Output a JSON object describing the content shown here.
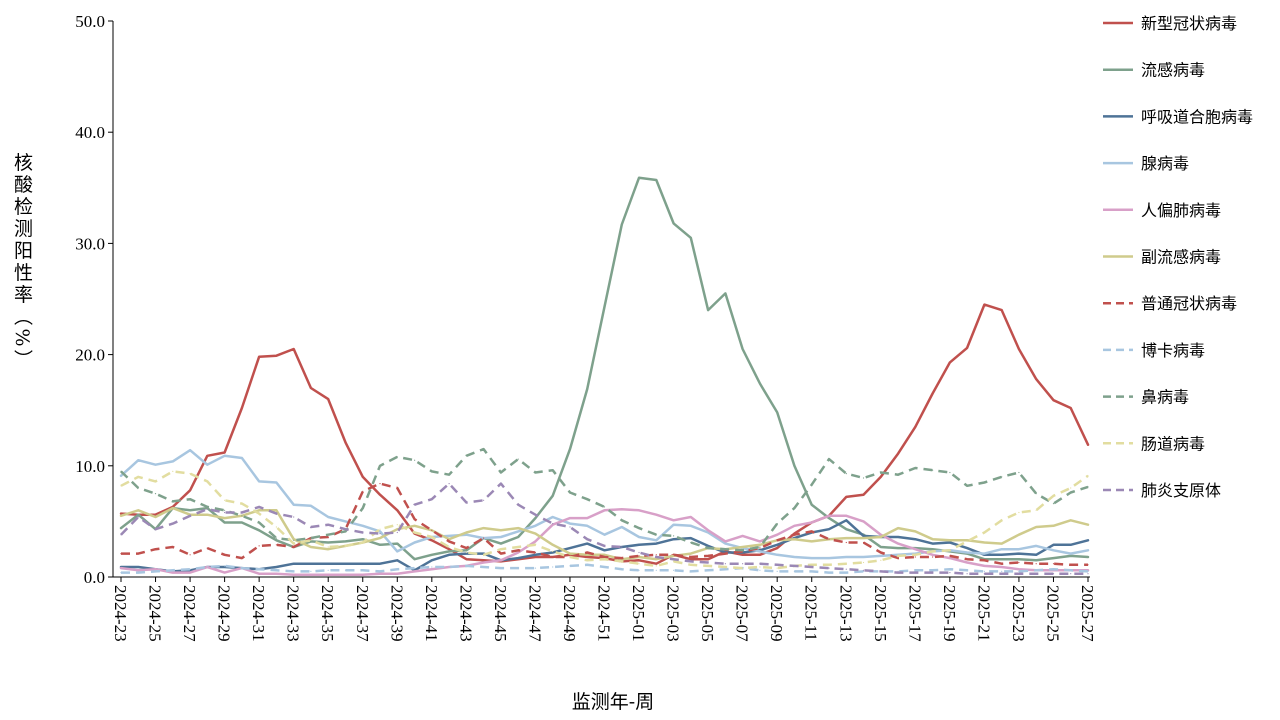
{
  "chart_data": {
    "type": "line",
    "xlabel": "监测年-周",
    "ylabel": "核酸检测阳性率（%）",
    "ylim": [
      0,
      50
    ],
    "yticks": [
      "0.0",
      "10.0",
      "20.0",
      "30.0",
      "40.0",
      "50.0"
    ],
    "grid": false,
    "legend_position": "right",
    "x": [
      "2024-23",
      "2024-24",
      "2024-25",
      "2024-26",
      "2024-27",
      "2024-28",
      "2024-29",
      "2024-30",
      "2024-31",
      "2024-32",
      "2024-33",
      "2024-34",
      "2024-35",
      "2024-36",
      "2024-37",
      "2024-38",
      "2024-39",
      "2024-40",
      "2024-41",
      "2024-42",
      "2024-43",
      "2024-44",
      "2024-45",
      "2024-46",
      "2024-47",
      "2024-48",
      "2024-49",
      "2024-50",
      "2024-51",
      "2024-52",
      "2025-01",
      "2025-02",
      "2025-03",
      "2025-04",
      "2025-05",
      "2025-06",
      "2025-07",
      "2025-08",
      "2025-09",
      "2025-10",
      "2025-11",
      "2025-12",
      "2025-13",
      "2025-14",
      "2025-15",
      "2025-16",
      "2025-17",
      "2025-18",
      "2025-19",
      "2025-20",
      "2025-21",
      "2025-22",
      "2025-23",
      "2025-24",
      "2025-25",
      "2025-26",
      "2025-27"
    ],
    "xticks": [
      "2024-23",
      "2024-25",
      "2024-27",
      "2024-29",
      "2024-31",
      "2024-33",
      "2024-35",
      "2024-37",
      "2024-39",
      "2024-41",
      "2024-43",
      "2024-45",
      "2024-47",
      "2024-49",
      "2024-51",
      "2025-01",
      "2025-03",
      "2025-05",
      "2025-07",
      "2025-09",
      "2025-11",
      "2025-13",
      "2025-15",
      "2025-17",
      "2025-19",
      "2025-21",
      "2025-23",
      "2025-25",
      "2025-27"
    ],
    "series": [
      {
        "name": "新型冠状病毒",
        "color": "#c0504d",
        "dash": false,
        "values": [
          5.7,
          5.6,
          5.6,
          6.3,
          7.8,
          10.9,
          11.2,
          15.2,
          19.8,
          19.9,
          20.5,
          17.0,
          16.0,
          12.1,
          9.0,
          7.4,
          6.0,
          3.9,
          3.3,
          2.5,
          1.6,
          1.5,
          1.4,
          1.6,
          1.8,
          1.8,
          2.0,
          1.8,
          1.7,
          1.4,
          1.5,
          1.2,
          2.0,
          1.6,
          1.6,
          2.3,
          2.0,
          2.0,
          2.6,
          3.9,
          4.9,
          5.5,
          7.2,
          7.4,
          9.0,
          11.1,
          13.5,
          16.5,
          19.3,
          20.6,
          24.5,
          24.0,
          20.5,
          17.8,
          15.9,
          15.2,
          11.9
        ]
      },
      {
        "name": "流感病毒",
        "color": "#7ea18c",
        "dash": false,
        "values": [
          4.4,
          5.6,
          4.3,
          6.2,
          6.0,
          6.2,
          4.9,
          4.9,
          4.2,
          3.3,
          2.7,
          3.2,
          3.1,
          3.2,
          3.4,
          2.9,
          3.0,
          1.6,
          2.0,
          2.3,
          2.4,
          3.5,
          3.0,
          3.6,
          5.3,
          7.3,
          11.5,
          16.9,
          24.3,
          31.7,
          35.9,
          35.7,
          31.8,
          30.5,
          24.0,
          25.5,
          20.5,
          17.4,
          14.8,
          10.0,
          6.5,
          5.3,
          4.3,
          3.8,
          2.7,
          2.6,
          2.6,
          2.5,
          2.3,
          2.1,
          1.6,
          1.6,
          1.6,
          1.5,
          1.7,
          1.9,
          1.8
        ]
      },
      {
        "name": "呼吸道合胞病毒",
        "color": "#4e7397",
        "dash": false,
        "values": [
          0.9,
          0.9,
          0.7,
          0.5,
          0.6,
          0.9,
          0.9,
          0.8,
          0.7,
          0.9,
          1.2,
          1.2,
          1.2,
          1.2,
          1.2,
          1.2,
          1.5,
          0.6,
          1.5,
          2.0,
          2.1,
          2.1,
          1.5,
          1.7,
          2.0,
          2.2,
          2.6,
          3.0,
          2.4,
          2.7,
          2.9,
          3.0,
          3.4,
          3.5,
          2.8,
          2.2,
          2.2,
          2.4,
          2.9,
          3.5,
          4.0,
          4.3,
          5.1,
          3.7,
          3.6,
          3.6,
          3.4,
          3.0,
          3.1,
          2.6,
          2.0,
          2.0,
          2.1,
          2.0,
          2.9,
          2.9,
          3.3
        ]
      },
      {
        "name": "腺病毒",
        "color": "#a8c6e0",
        "dash": false,
        "values": [
          9.1,
          10.5,
          10.1,
          10.4,
          11.4,
          10.1,
          10.9,
          10.7,
          8.6,
          8.5,
          6.5,
          6.4,
          5.4,
          5.0,
          4.6,
          4.1,
          2.3,
          3.1,
          3.6,
          3.7,
          3.8,
          3.5,
          3.6,
          4.1,
          4.6,
          5.4,
          4.8,
          4.6,
          3.8,
          4.5,
          3.6,
          3.3,
          4.7,
          4.6,
          4.0,
          3.0,
          2.6,
          2.3,
          2.0,
          1.8,
          1.7,
          1.7,
          1.8,
          1.8,
          1.9,
          2.0,
          2.1,
          2.3,
          2.4,
          2.2,
          2.1,
          2.5,
          2.5,
          2.8,
          2.4,
          2.1,
          2.4
        ]
      },
      {
        "name": "人偏肺病毒",
        "color": "#d8a0c8",
        "dash": false,
        "values": [
          0.8,
          0.6,
          0.7,
          0.4,
          0.4,
          0.9,
          0.4,
          0.8,
          0.3,
          0.3,
          0.2,
          0.2,
          0.2,
          0.2,
          0.2,
          0.3,
          0.3,
          0.5,
          0.7,
          0.9,
          1.0,
          1.3,
          1.5,
          2.2,
          3.2,
          4.7,
          5.3,
          5.3,
          6.0,
          6.1,
          6.0,
          5.6,
          5.1,
          5.4,
          4.2,
          3.2,
          3.7,
          3.2,
          3.8,
          4.6,
          4.9,
          5.5,
          5.5,
          5.0,
          3.8,
          3.0,
          2.5,
          2.0,
          1.7,
          1.3,
          1.0,
          0.9,
          0.7,
          0.6,
          0.6,
          0.6,
          0.6
        ]
      },
      {
        "name": "副流感病毒",
        "color": "#cfcb8c",
        "dash": false,
        "values": [
          5.5,
          6.0,
          5.4,
          6.2,
          5.6,
          5.6,
          5.3,
          5.5,
          6.0,
          6.0,
          3.4,
          2.7,
          2.5,
          2.8,
          3.1,
          3.5,
          4.3,
          4.6,
          4.2,
          3.4,
          4.0,
          4.4,
          4.2,
          4.4,
          3.9,
          2.9,
          2.1,
          2.0,
          2.0,
          1.6,
          1.8,
          1.6,
          1.9,
          2.1,
          2.6,
          2.5,
          2.7,
          2.9,
          3.3,
          3.4,
          3.2,
          3.4,
          3.5,
          3.5,
          3.6,
          4.4,
          4.1,
          3.4,
          3.3,
          3.3,
          3.1,
          3.0,
          3.8,
          4.5,
          4.6,
          5.1,
          4.7
        ]
      },
      {
        "name": "普通冠状病毒",
        "color": "#c0504d",
        "dash": true,
        "values": [
          2.1,
          2.1,
          2.5,
          2.7,
          2.0,
          2.6,
          2.0,
          1.7,
          2.8,
          2.9,
          2.7,
          3.5,
          3.6,
          4.3,
          7.7,
          8.4,
          8.0,
          5.2,
          4.2,
          3.2,
          2.6,
          3.5,
          2.1,
          2.4,
          2.2,
          1.8,
          1.8,
          2.2,
          1.8,
          1.7,
          1.9,
          2.0,
          2.0,
          1.8,
          1.9,
          2.1,
          2.3,
          2.6,
          3.3,
          3.8,
          4.1,
          3.4,
          3.1,
          3.1,
          2.2,
          1.7,
          1.8,
          1.8,
          1.9,
          1.6,
          1.5,
          1.2,
          1.3,
          1.2,
          1.2,
          1.1,
          1.1
        ]
      },
      {
        "name": "博卡病毒",
        "color": "#a8c6e0",
        "dash": true,
        "values": [
          0.4,
          0.4,
          0.5,
          0.6,
          0.7,
          0.9,
          1.0,
          0.8,
          0.7,
          0.6,
          0.5,
          0.5,
          0.6,
          0.6,
          0.6,
          0.5,
          0.7,
          0.8,
          0.9,
          0.9,
          1.0,
          0.9,
          0.8,
          0.8,
          0.8,
          0.9,
          1.0,
          1.1,
          0.9,
          0.7,
          0.6,
          0.6,
          0.6,
          0.5,
          0.6,
          0.7,
          0.8,
          0.6,
          0.5,
          0.5,
          0.5,
          0.4,
          0.4,
          0.5,
          0.5,
          0.5,
          0.6,
          0.6,
          0.7,
          0.6,
          0.5,
          0.5,
          0.5,
          0.6,
          0.7,
          0.6,
          0.5
        ]
      },
      {
        "name": "鼻病毒",
        "color": "#7ea18c",
        "dash": true,
        "values": [
          9.5,
          8.0,
          7.5,
          6.8,
          7.0,
          6.3,
          6.0,
          5.5,
          4.9,
          3.5,
          3.3,
          3.5,
          3.8,
          4.1,
          6.2,
          10.0,
          10.8,
          10.5,
          9.5,
          9.2,
          10.9,
          11.5,
          9.4,
          10.6,
          9.4,
          9.6,
          7.6,
          7.0,
          6.3,
          5.1,
          4.4,
          3.8,
          3.7,
          3.1,
          2.6,
          2.5,
          2.4,
          2.7,
          4.8,
          6.2,
          8.3,
          10.6,
          9.3,
          8.9,
          9.4,
          9.2,
          9.8,
          9.6,
          9.4,
          8.2,
          8.5,
          9.0,
          9.4,
          7.5,
          6.6,
          7.6,
          8.1
        ]
      },
      {
        "name": "肠道病毒",
        "color": "#e2dda0",
        "dash": true,
        "values": [
          8.2,
          9.0,
          8.6,
          9.5,
          9.3,
          8.6,
          6.9,
          6.6,
          5.7,
          4.5,
          3.0,
          3.3,
          2.7,
          2.8,
          3.1,
          4.3,
          4.7,
          4.0,
          3.6,
          2.7,
          2.2,
          2.0,
          2.5,
          2.7,
          2.9,
          2.3,
          1.8,
          1.5,
          1.6,
          1.4,
          1.2,
          1.0,
          1.4,
          1.1,
          1.0,
          0.9,
          0.8,
          0.9,
          0.8,
          1.0,
          1.1,
          1.1,
          1.2,
          1.3,
          1.5,
          1.9,
          2.0,
          2.3,
          2.4,
          3.2,
          4.0,
          5.1,
          5.8,
          6.0,
          7.3,
          8.0,
          9.1
        ]
      },
      {
        "name": "肺炎支原体",
        "color": "#9b88b5",
        "dash": true,
        "values": [
          3.8,
          5.4,
          4.3,
          4.8,
          5.5,
          6.1,
          5.8,
          5.8,
          6.3,
          5.7,
          5.4,
          4.5,
          4.7,
          4.3,
          4.0,
          3.9,
          4.0,
          6.5,
          7.0,
          8.4,
          6.7,
          6.9,
          8.4,
          6.5,
          5.6,
          4.8,
          4.5,
          3.4,
          2.8,
          2.7,
          2.2,
          1.8,
          1.6,
          1.4,
          1.3,
          1.2,
          1.2,
          1.2,
          1.1,
          1.0,
          0.9,
          0.8,
          0.7,
          0.6,
          0.5,
          0.4,
          0.4,
          0.4,
          0.4,
          0.3,
          0.3,
          0.3,
          0.3,
          0.3,
          0.3,
          0.3,
          0.3
        ]
      }
    ]
  }
}
